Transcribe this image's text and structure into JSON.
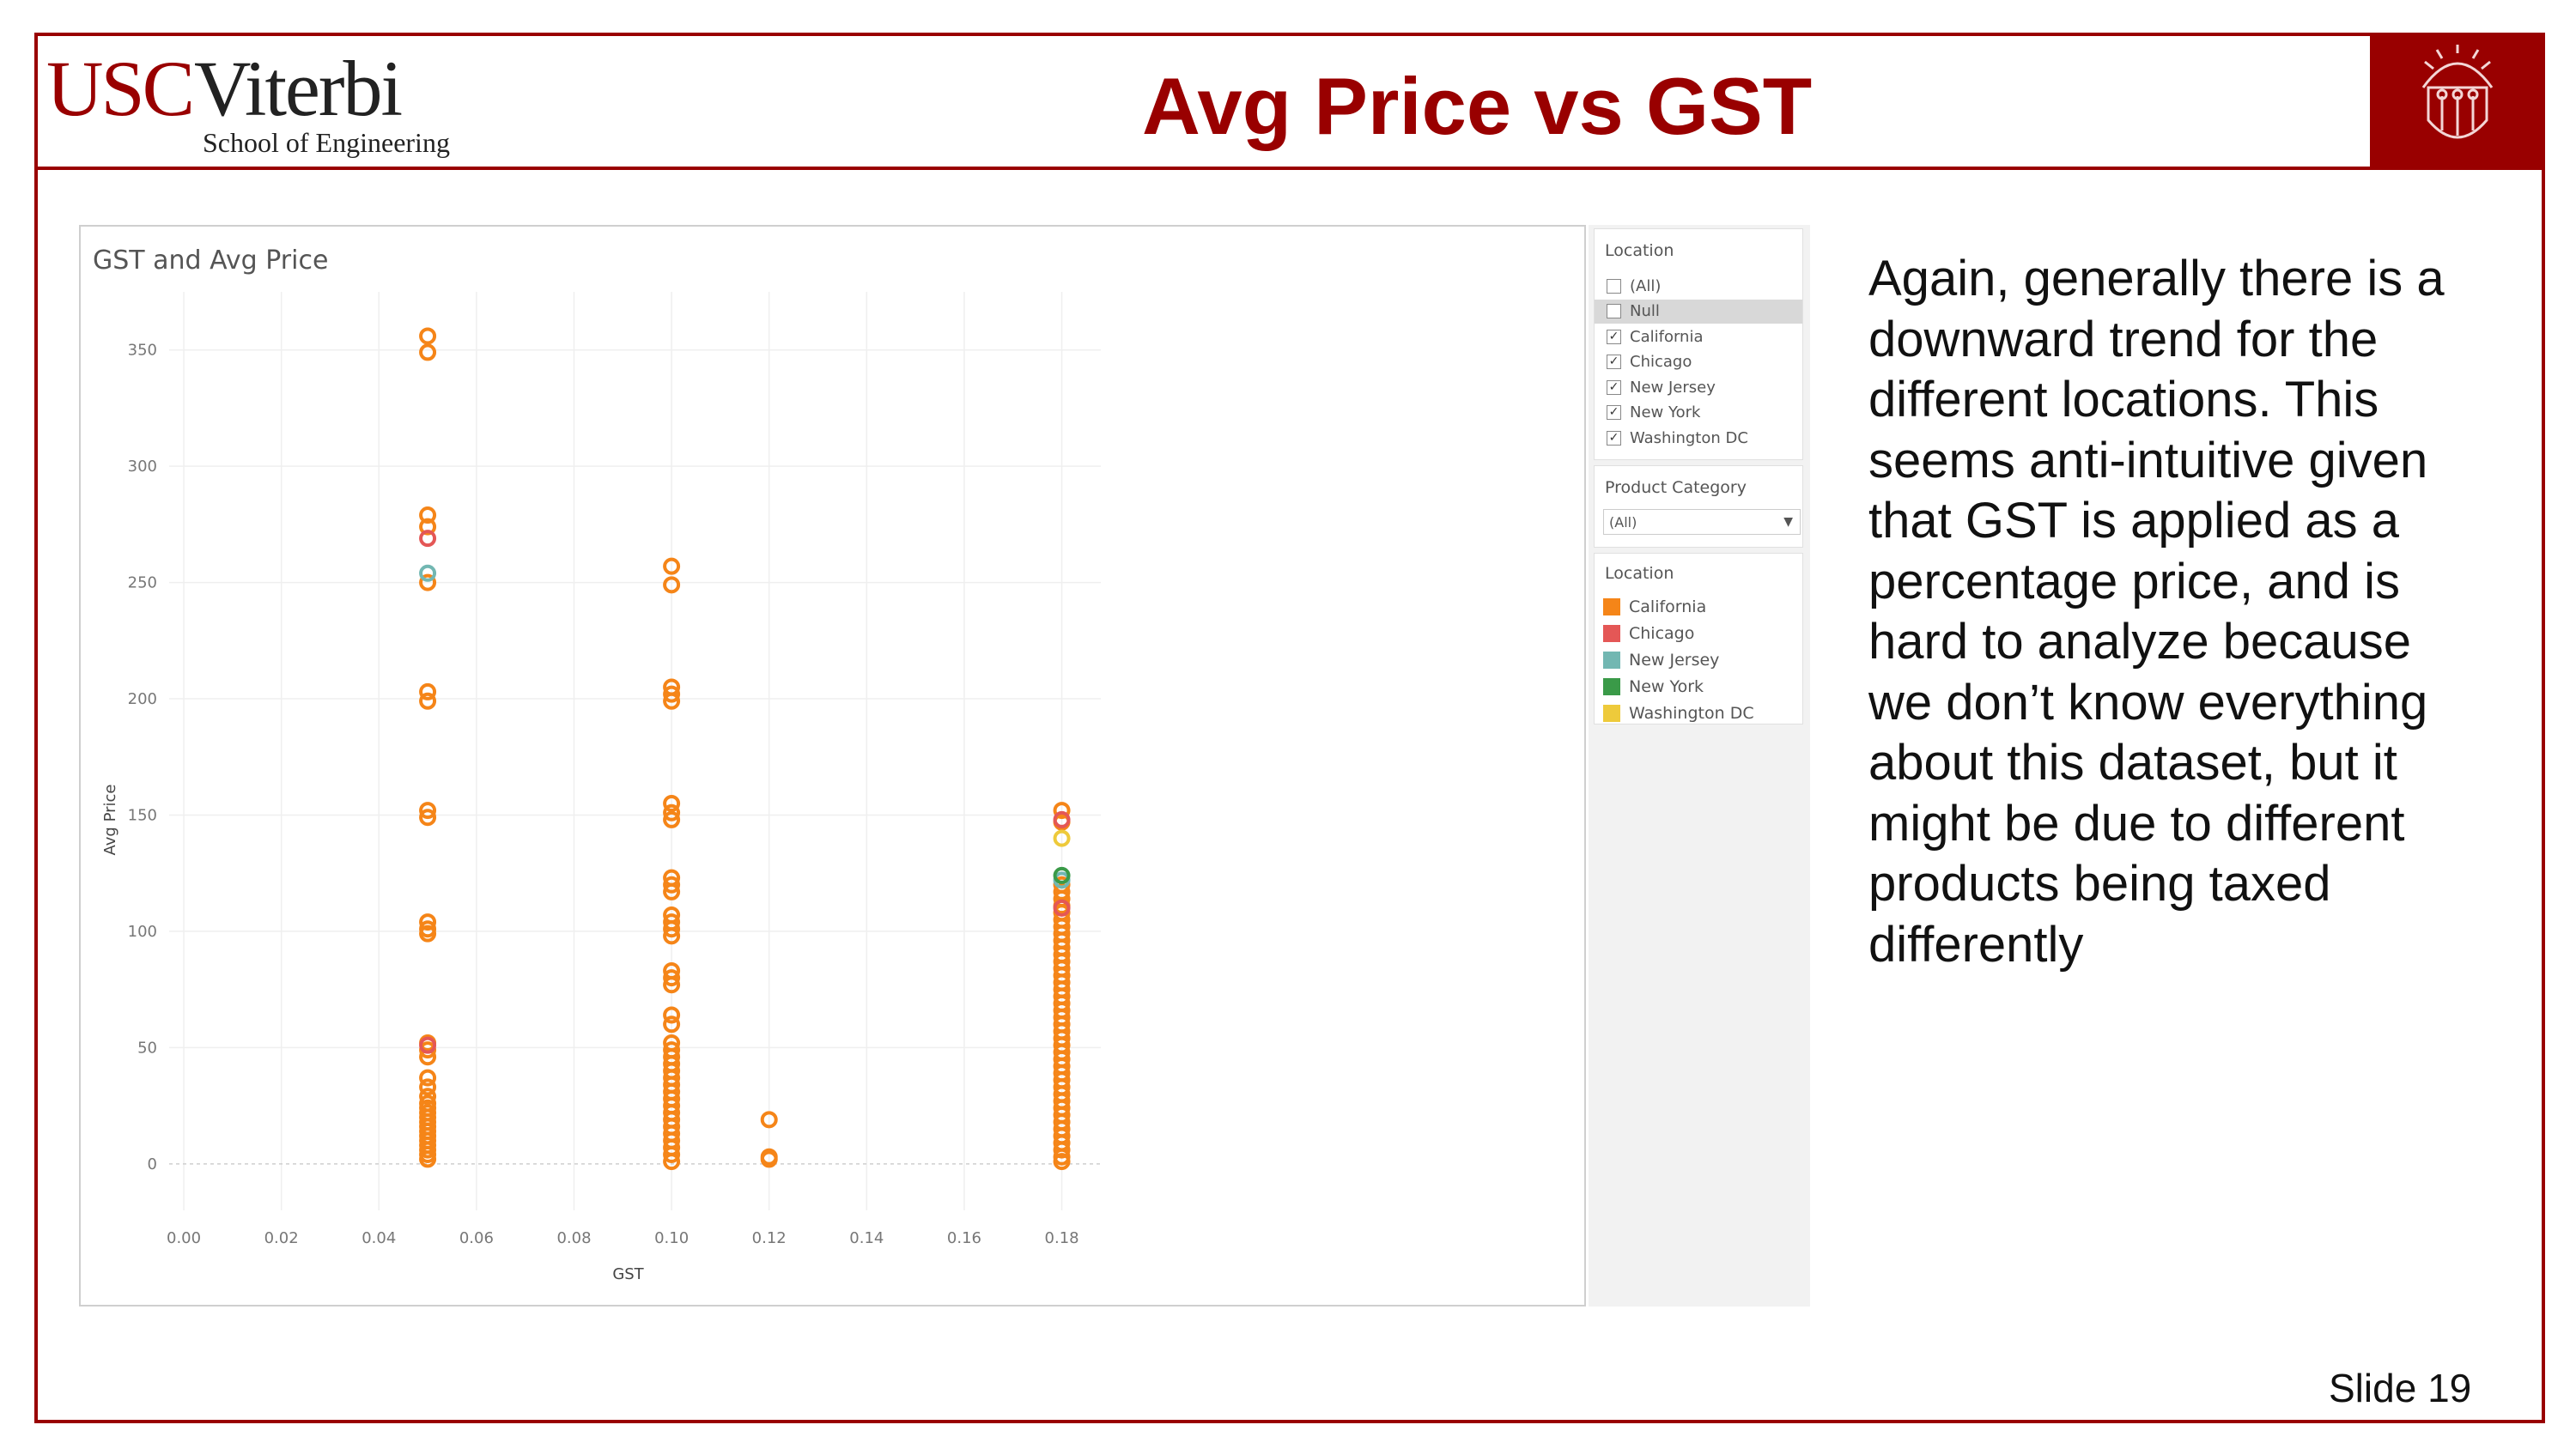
{
  "header": {
    "logo_usc": "USC",
    "logo_viterbi": "Viterbi",
    "logo_school": "School of Engineering",
    "title": "Avg Price vs GST",
    "seal_icon": "usc-seal-icon"
  },
  "viz": {
    "title": "GST and Avg Price"
  },
  "filters": {
    "location_title": "Location",
    "location_items": [
      {
        "label": "(All)",
        "checked": false
      },
      {
        "label": "Null",
        "checked": false
      },
      {
        "label": "California",
        "checked": true
      },
      {
        "label": "Chicago",
        "checked": true
      },
      {
        "label": "New Jersey",
        "checked": true
      },
      {
        "label": "New York",
        "checked": true
      },
      {
        "label": "Washington DC",
        "checked": true
      }
    ],
    "category_title": "Product Category",
    "category_value": "(All)",
    "legend_title": "Location",
    "legend_items": [
      {
        "label": "California",
        "color": "#f58518"
      },
      {
        "label": "Chicago",
        "color": "#e45756"
      },
      {
        "label": "New Jersey",
        "color": "#72b7b2"
      },
      {
        "label": "New York",
        "color": "#3a9a48"
      },
      {
        "label": "Washington DC",
        "color": "#eeca3b"
      }
    ]
  },
  "body_text": "Again, generally there is a downward trend for the different locations. This seems anti-intuitive given that GST is applied as a percentage price, and is hard to analyze because we don’t know everything about this dataset, but it might be due to different products being taxed differently",
  "slide_number": "Slide 19",
  "chart_data": {
    "type": "scatter",
    "title": "GST and Avg Price",
    "xlabel": "GST",
    "ylabel": "Avg Price",
    "xlim": [
      -0.003,
      0.188
    ],
    "ylim": [
      -20,
      375
    ],
    "x_ticks": [
      "0.00",
      "0.02",
      "0.04",
      "0.06",
      "0.08",
      "0.10",
      "0.12",
      "0.14",
      "0.16",
      "0.18"
    ],
    "y_ticks": [
      "0",
      "50",
      "100",
      "150",
      "200",
      "250",
      "300",
      "350"
    ],
    "grid": true,
    "series": [
      {
        "name": "California",
        "color": "#f58518",
        "points": [
          [
            0.05,
            356
          ],
          [
            0.05,
            349
          ],
          [
            0.05,
            279
          ],
          [
            0.05,
            274
          ],
          [
            0.05,
            250
          ],
          [
            0.05,
            203
          ],
          [
            0.05,
            199
          ],
          [
            0.05,
            152
          ],
          [
            0.05,
            149
          ],
          [
            0.05,
            104
          ],
          [
            0.05,
            101
          ],
          [
            0.05,
            99
          ],
          [
            0.05,
            52
          ],
          [
            0.05,
            49
          ],
          [
            0.05,
            46
          ],
          [
            0.05,
            37
          ],
          [
            0.05,
            33
          ],
          [
            0.05,
            29
          ],
          [
            0.05,
            26
          ],
          [
            0.05,
            24
          ],
          [
            0.05,
            22
          ],
          [
            0.05,
            20
          ],
          [
            0.05,
            18
          ],
          [
            0.05,
            16
          ],
          [
            0.05,
            14
          ],
          [
            0.05,
            12
          ],
          [
            0.05,
            10
          ],
          [
            0.05,
            8
          ],
          [
            0.05,
            6
          ],
          [
            0.05,
            4
          ],
          [
            0.05,
            2
          ],
          [
            0.1,
            257
          ],
          [
            0.1,
            249
          ],
          [
            0.1,
            205
          ],
          [
            0.1,
            202
          ],
          [
            0.1,
            199
          ],
          [
            0.1,
            155
          ],
          [
            0.1,
            151
          ],
          [
            0.1,
            148
          ],
          [
            0.1,
            123
          ],
          [
            0.1,
            120
          ],
          [
            0.1,
            117
          ],
          [
            0.1,
            107
          ],
          [
            0.1,
            104
          ],
          [
            0.1,
            101
          ],
          [
            0.1,
            98
          ],
          [
            0.1,
            83
          ],
          [
            0.1,
            80
          ],
          [
            0.1,
            77
          ],
          [
            0.1,
            64
          ],
          [
            0.1,
            60
          ],
          [
            0.1,
            52
          ],
          [
            0.1,
            49
          ],
          [
            0.1,
            46
          ],
          [
            0.1,
            43
          ],
          [
            0.1,
            40
          ],
          [
            0.1,
            37
          ],
          [
            0.1,
            34
          ],
          [
            0.1,
            31
          ],
          [
            0.1,
            28
          ],
          [
            0.1,
            25
          ],
          [
            0.1,
            22
          ],
          [
            0.1,
            19
          ],
          [
            0.1,
            16
          ],
          [
            0.1,
            13
          ],
          [
            0.1,
            10
          ],
          [
            0.1,
            7
          ],
          [
            0.1,
            4
          ],
          [
            0.1,
            1
          ],
          [
            0.12,
            19
          ],
          [
            0.12,
            3
          ],
          [
            0.12,
            2
          ],
          [
            0.18,
            152
          ],
          [
            0.18,
            147
          ],
          [
            0.18,
            120
          ],
          [
            0.18,
            117
          ],
          [
            0.18,
            114
          ],
          [
            0.18,
            111
          ],
          [
            0.18,
            108
          ],
          [
            0.18,
            105
          ],
          [
            0.18,
            102
          ],
          [
            0.18,
            99
          ],
          [
            0.18,
            96
          ],
          [
            0.18,
            93
          ],
          [
            0.18,
            90
          ],
          [
            0.18,
            87
          ],
          [
            0.18,
            84
          ],
          [
            0.18,
            81
          ],
          [
            0.18,
            78
          ],
          [
            0.18,
            75
          ],
          [
            0.18,
            72
          ],
          [
            0.18,
            69
          ],
          [
            0.18,
            66
          ],
          [
            0.18,
            63
          ],
          [
            0.18,
            60
          ],
          [
            0.18,
            57
          ],
          [
            0.18,
            54
          ],
          [
            0.18,
            51
          ],
          [
            0.18,
            48
          ],
          [
            0.18,
            45
          ],
          [
            0.18,
            42
          ],
          [
            0.18,
            39
          ],
          [
            0.18,
            36
          ],
          [
            0.18,
            33
          ],
          [
            0.18,
            30
          ],
          [
            0.18,
            27
          ],
          [
            0.18,
            24
          ],
          [
            0.18,
            21
          ],
          [
            0.18,
            18
          ],
          [
            0.18,
            15
          ],
          [
            0.18,
            12
          ],
          [
            0.18,
            9
          ],
          [
            0.18,
            6
          ],
          [
            0.18,
            3
          ],
          [
            0.18,
            1
          ]
        ]
      },
      {
        "name": "Chicago",
        "color": "#e45756",
        "points": [
          [
            0.05,
            269
          ],
          [
            0.05,
            51
          ],
          [
            0.18,
            148
          ],
          [
            0.18,
            110
          ]
        ]
      },
      {
        "name": "New Jersey",
        "color": "#72b7b2",
        "points": [
          [
            0.05,
            254
          ],
          [
            0.18,
            122
          ]
        ]
      },
      {
        "name": "New York",
        "color": "#3a9a48",
        "points": [
          [
            0.18,
            124
          ]
        ]
      },
      {
        "name": "Washington DC",
        "color": "#eeca3b",
        "points": [
          [
            0.18,
            140
          ]
        ]
      }
    ]
  }
}
